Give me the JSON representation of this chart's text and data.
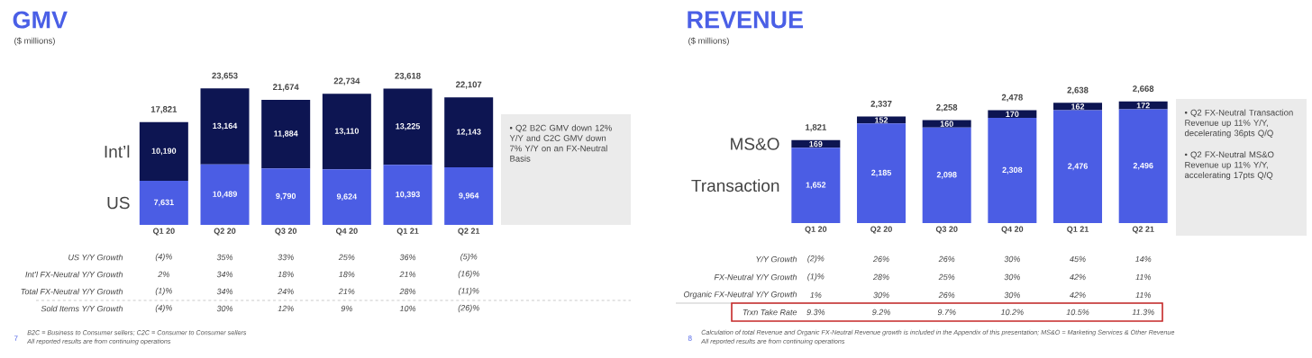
{
  "chart_data": [
    {
      "type": "bar",
      "title": "GMV",
      "ylabel": "($ millions)",
      "stacked": true,
      "categories": [
        "Q1 20",
        "Q2 20",
        "Q3 20",
        "Q4 20",
        "Q1 21",
        "Q2 21"
      ],
      "series": [
        {
          "name": "US",
          "color": "#4b5de4",
          "values": [
            7631,
            10489,
            9790,
            9624,
            10393,
            9964
          ],
          "value_labels": [
            "7,631",
            "10,489",
            "9,790",
            "9,624",
            "10,393",
            "9,964"
          ]
        },
        {
          "name": "Int’l",
          "color": "#0d1552",
          "values": [
            10190,
            13164,
            11884,
            13110,
            13225,
            12143
          ],
          "value_labels": [
            "10,190",
            "13,164",
            "11,884",
            "13,110",
            "13,225",
            "12,143"
          ]
        }
      ],
      "totals": [
        "17,821",
        "23,653",
        "21,674",
        "22,734",
        "23,618",
        "22,107"
      ],
      "annotations": [
        "US Y/Y Growth",
        "(4)%",
        "35%",
        "33%",
        "25%",
        "36%",
        "(5)%",
        "Int’l FX-Neutral Y/Y Growth",
        "2%",
        "34%",
        "18%",
        "18%",
        "21%",
        "(16)%",
        "Total FX-Neutral Y/Y Growth",
        "(1)%",
        "34%",
        "24%",
        "21%",
        "28%",
        "(11)%",
        "Sold Items Y/Y Growth",
        "(4)%",
        "30%",
        "12%",
        "9%",
        "10%",
        "(26)%",
        "• Q2 B2C GMV down 12% Y/Y and C2C GMV down 7% Y/Y on an FX-Neutral Basis",
        "7",
        "B2C = Business to Consumer sellers; C2C = Consumer to Consumer sellers",
        "All reported results are from continuing operations"
      ]
    },
    {
      "type": "bar",
      "title": "REVENUE",
      "ylabel": "($ millions)",
      "stacked": true,
      "categories": [
        "Q1 20",
        "Q2 20",
        "Q3 20",
        "Q4 20",
        "Q1 21",
        "Q2 21"
      ],
      "series": [
        {
          "name": "Transaction",
          "color": "#4b5de4",
          "values": [
            1652,
            2185,
            2098,
            2308,
            2476,
            2496
          ],
          "value_labels": [
            "1,652",
            "2,185",
            "2,098",
            "2,308",
            "2,476",
            "2,496"
          ]
        },
        {
          "name": "MS&O",
          "color": "#0d1552",
          "values": [
            169,
            152,
            160,
            170,
            162,
            172
          ],
          "value_labels": [
            "169",
            "152",
            "160",
            "170",
            "162",
            "172"
          ]
        }
      ],
      "totals": [
        "1,821",
        "2,337",
        "2,258",
        "2,478",
        "2,638",
        "2,668"
      ],
      "annotations": [
        "Y/Y Growth",
        "(2)%",
        "26%",
        "26%",
        "30%",
        "45%",
        "14%",
        "FX-Neutral Y/Y Growth",
        "(1)%",
        "28%",
        "25%",
        "30%",
        "42%",
        "11%",
        "Organic FX-Neutral Y/Y Growth",
        "1%",
        "30%",
        "26%",
        "30%",
        "42%",
        "11%",
        "Trxn Take Rate",
        "9.3%",
        "9.2%",
        "9.7%",
        "10.2%",
        "10.5%",
        "11.3%",
        "• Q2 FX-Neutral Transaction Revenue up 11% Y/Y, decelerating 36pts Q/Q",
        "• Q2 FX-Neutral MS&O Revenue up 11% Y/Y, accelerating 17pts Q/Q",
        "8",
        "Calculation of total Revenue and Organic FX-Neutral Revenue growth is included in the Appendix of this presentation; MS&O = Marketing Services & Other Revenue",
        "All reported results are from continuing operations"
      ]
    }
  ]
}
